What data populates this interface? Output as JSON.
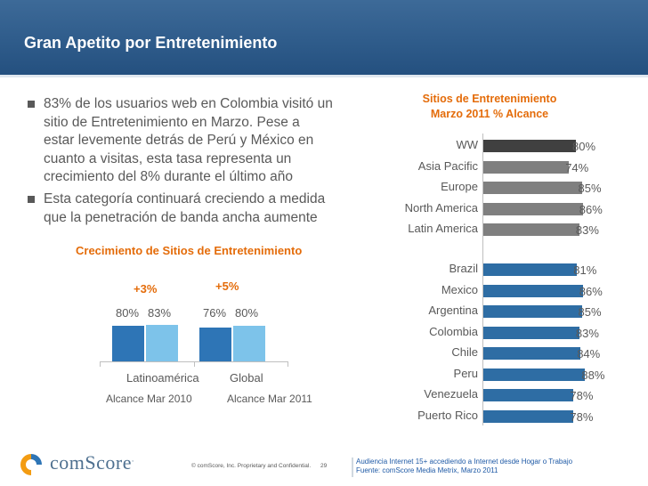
{
  "header": {
    "title": "Gran Apetito por Entretenimiento"
  },
  "bullets": [
    {
      "lines": [
        "83% de los usuarios web en Colombia visitó un",
        "sitio de Entretenimiento en Marzo. Pese a",
        "estar levemente detrás de Perú y México en",
        "cuanto a visitas, esta tasa representa un",
        "crecimiento del 8% durante el último año"
      ]
    },
    {
      "lines": [
        "Esta categoría continuará creciendo a medida",
        "que la penetración de banda ancha aumente"
      ]
    }
  ],
  "growth_chart": {
    "title": "Crecimiento de Sitios de Entretenimiento",
    "groups": [
      {
        "label": "Latinoamérica",
        "growth": "+3%",
        "v2010_label": "80%",
        "v2011_label": "83%",
        "v2010": 80,
        "v2011": 83
      },
      {
        "label": "Global",
        "growth": "+5%",
        "v2010_label": "76%",
        "v2011_label": "80%",
        "v2010": 76,
        "v2011": 80
      }
    ],
    "legend": [
      "Alcance Mar 2010",
      "Alcance Mar 2011"
    ],
    "colors": {
      "y2010": "#2e75b6",
      "y2011": "#7dc3ea"
    }
  },
  "reach_chart": {
    "title_line1": "Sitios de Entretenimiento",
    "title_line2": "Marzo 2011 % Alcance",
    "colors": {
      "ww": "#404040",
      "region": "#7f7f7f",
      "country": "#2e6da4"
    },
    "regions": [
      {
        "name": "WW",
        "value": 80,
        "label": "80%",
        "kind": "ww"
      },
      {
        "name": "Asia Pacific",
        "value": 74,
        "label": "74%",
        "kind": "region"
      },
      {
        "name": "Europe",
        "value": 85,
        "label": "85%",
        "kind": "region"
      },
      {
        "name": "North America",
        "value": 86,
        "label": "86%",
        "kind": "region"
      },
      {
        "name": "Latin America",
        "value": 83,
        "label": "83%",
        "kind": "region"
      }
    ],
    "countries": [
      {
        "name": "Brazil",
        "value": 81,
        "label": "81%"
      },
      {
        "name": "Mexico",
        "value": 86,
        "label": "86%"
      },
      {
        "name": "Argentina",
        "value": 85,
        "label": "85%"
      },
      {
        "name": "Colombia",
        "value": 83,
        "label": "83%"
      },
      {
        "name": "Chile",
        "value": 84,
        "label": "84%"
      },
      {
        "name": "Peru",
        "value": 88,
        "label": "88%"
      },
      {
        "name": "Venezuela",
        "value": 78,
        "label": "78%"
      },
      {
        "name": "Puerto Rico",
        "value": 78,
        "label": "78%"
      }
    ]
  },
  "chart_data": [
    {
      "type": "bar",
      "title": "Crecimiento de Sitios de Entretenimiento",
      "categories": [
        "Latinoamérica",
        "Global"
      ],
      "series": [
        {
          "name": "Alcance Mar 2010",
          "values": [
            80,
            76
          ]
        },
        {
          "name": "Alcance Mar 2011",
          "values": [
            83,
            80
          ]
        }
      ],
      "annotations": [
        "+3%",
        "+5%"
      ]
    },
    {
      "type": "bar",
      "orientation": "horizontal",
      "title": "Sitios de Entretenimiento Marzo 2011 % Alcance",
      "categories": [
        "WW",
        "Asia Pacific",
        "Europe",
        "North America",
        "Latin America",
        "Brazil",
        "Mexico",
        "Argentina",
        "Colombia",
        "Chile",
        "Peru",
        "Venezuela",
        "Puerto Rico"
      ],
      "values": [
        80,
        74,
        85,
        86,
        83,
        81,
        86,
        85,
        83,
        84,
        88,
        78,
        78
      ],
      "xlim": [
        0,
        100
      ]
    }
  ],
  "footer": {
    "brand_main": "comScore",
    "brand_tm": ".",
    "copyright": "© comScore, Inc.  Proprietary and Confidential.",
    "page": "29",
    "source_line1": "Audiencia Internet 15+ accediendo a Internet desde Hogar o Trabajo",
    "source_line2": "Fuente:  comScore Media Metrix, Marzo 2011"
  }
}
